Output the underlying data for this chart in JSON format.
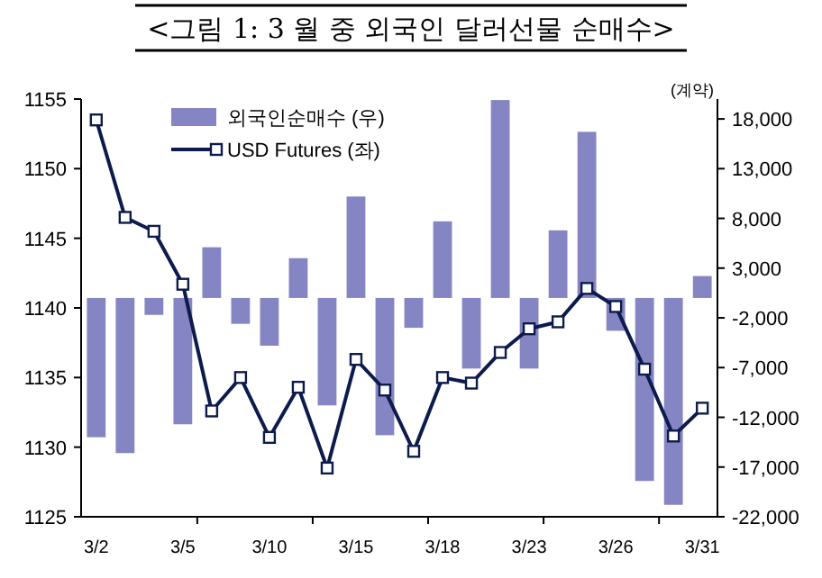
{
  "chart_data": {
    "type": "bar",
    "title": "<그림 1: 3 월 중 외국인 달러선물 순매수>",
    "y2label": "(계약)",
    "categories": [
      "3/2",
      null,
      null,
      "3/5",
      null,
      null,
      "3/10",
      null,
      null,
      "3/15",
      null,
      null,
      "3/18",
      null,
      null,
      "3/23",
      null,
      null,
      "3/26",
      null,
      null,
      "3/31"
    ],
    "series": [
      {
        "name": "외국인순매수 (우)",
        "axis": "y2",
        "color": "#8585c4",
        "values": [
          -14000,
          -15600,
          -1700,
          -12700,
          5100,
          -2600,
          -4800,
          4000,
          -10800,
          10200,
          -13800,
          -3000,
          7700,
          -7100,
          19900,
          -7100,
          6800,
          16700,
          -3300,
          -18400,
          -20800,
          2200
        ]
      },
      {
        "name": "USD Futures (좌)",
        "type": "line",
        "color": "#0d1b4c",
        "values": [
          1153.5,
          1146.5,
          1145.5,
          1141.7,
          1132.6,
          1135.0,
          1130.7,
          1134.3,
          1128.5,
          1136.3,
          1134.1,
          1129.7,
          1135.0,
          1134.6,
          1136.8,
          1138.5,
          1139.0,
          1141.4,
          1140.1,
          1135.6,
          1130.8,
          1132.8
        ]
      }
    ],
    "ylim": [
      1125,
      1155
    ],
    "yticks": [
      1125,
      1130,
      1135,
      1140,
      1145,
      1150,
      1155
    ],
    "y2lim": [
      -22000,
      20000
    ],
    "y2ticks": [
      {
        "value": -22000,
        "label": "-22,000"
      },
      {
        "value": -17000,
        "label": "-17,000"
      },
      {
        "value": -12000,
        "label": "-12,000"
      },
      {
        "value": -7000,
        "label": "-7,000"
      },
      {
        "value": -2000,
        "label": "-2,000"
      },
      {
        "value": 3000,
        "label": "3,000"
      },
      {
        "value": 8000,
        "label": "8,000"
      },
      {
        "value": 13000,
        "label": "13,000"
      },
      {
        "value": 18000,
        "label": "18,000"
      }
    ],
    "marker": "square",
    "legend": "top left",
    "grid": false
  }
}
